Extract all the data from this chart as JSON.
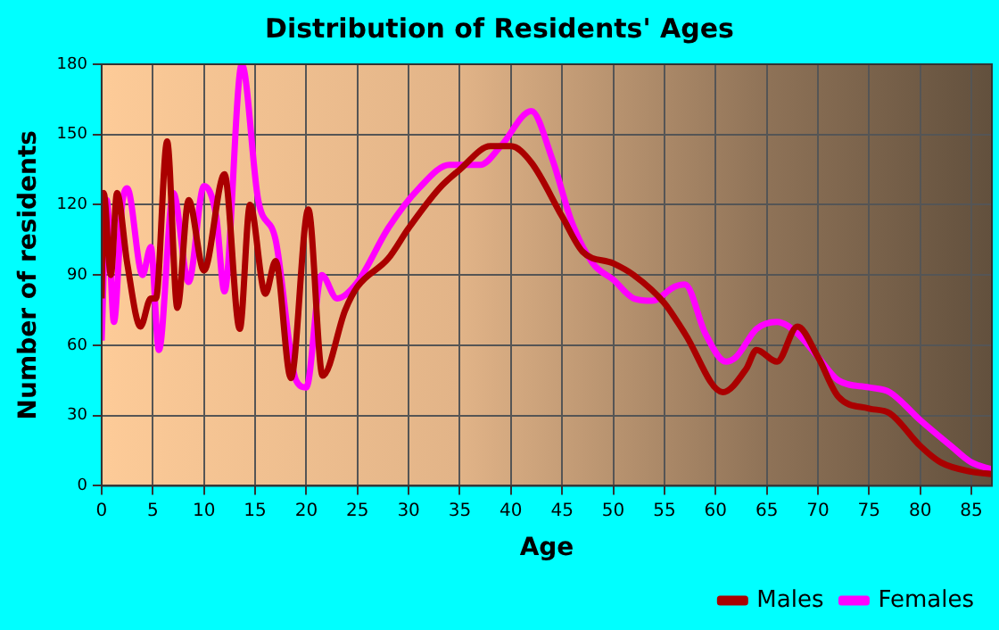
{
  "chart_data": {
    "type": "line",
    "title": "Distribution of Residents' Ages",
    "xlabel": "Age",
    "ylabel": "Number of residents",
    "xlim": [
      0,
      87
    ],
    "xticks": [
      0,
      5,
      10,
      15,
      20,
      25,
      30,
      35,
      40,
      45,
      50,
      55,
      60,
      65,
      70,
      75,
      80,
      85
    ],
    "ylim": [
      0,
      180
    ],
    "yticks": [
      0,
      30,
      60,
      90,
      120,
      150,
      180
    ],
    "grid": true,
    "legend": "bottom right",
    "marker": "none",
    "line_style": "solid",
    "series": [
      {
        "name": "Males",
        "color": "#aa0000",
        "x": [
          0,
          0.2,
          0.9,
          1.5,
          2.5,
          3.8,
          4.8,
          5.3,
          6.4,
          7.4,
          8.5,
          10,
          12,
          13.5,
          14.5,
          16,
          17,
          18.5,
          20.2,
          21.6,
          23.8,
          25,
          28,
          30,
          33,
          35,
          38,
          40,
          42,
          45,
          47,
          50,
          52,
          55,
          57,
          60.7,
          63,
          64,
          66,
          68,
          70,
          72,
          75,
          77,
          80,
          82,
          85,
          87
        ],
        "values": [
          80,
          125,
          90,
          125,
          95,
          68,
          80,
          80,
          147,
          76,
          122,
          92,
          133,
          67,
          120,
          82,
          96,
          46,
          118,
          47,
          75,
          85,
          97,
          110,
          127,
          135,
          145,
          145,
          138,
          115,
          100,
          95,
          90,
          78,
          65,
          40,
          50,
          58,
          53,
          68,
          55,
          38,
          33,
          31,
          17,
          10,
          6,
          5
        ]
      },
      {
        "name": "Females",
        "color": "#ff00ff",
        "x": [
          0,
          0.5,
          1.2,
          2,
          2.5,
          4,
          4.8,
          5.6,
          7,
          8.5,
          10,
          11.2,
          12,
          13.7,
          15.3,
          17,
          19,
          20,
          21.5,
          23,
          25,
          28,
          31,
          34,
          37,
          39,
          42,
          44,
          46,
          48,
          50,
          52,
          53.8,
          56,
          57,
          59,
          61,
          62,
          64,
          66,
          68,
          70,
          72,
          75,
          77,
          80,
          83,
          85,
          87
        ],
        "values": [
          62,
          122,
          70,
          120,
          127,
          90,
          102,
          58,
          125,
          87,
          128,
          115,
          83,
          180,
          122,
          105,
          45,
          42,
          90,
          80,
          87,
          110,
          127,
          137,
          137,
          145,
          160,
          140,
          112,
          95,
          88,
          80,
          79,
          85,
          86,
          65,
          53,
          55,
          67,
          70,
          65,
          55,
          45,
          42,
          40,
          28,
          17,
          10,
          7
        ]
      }
    ]
  }
}
